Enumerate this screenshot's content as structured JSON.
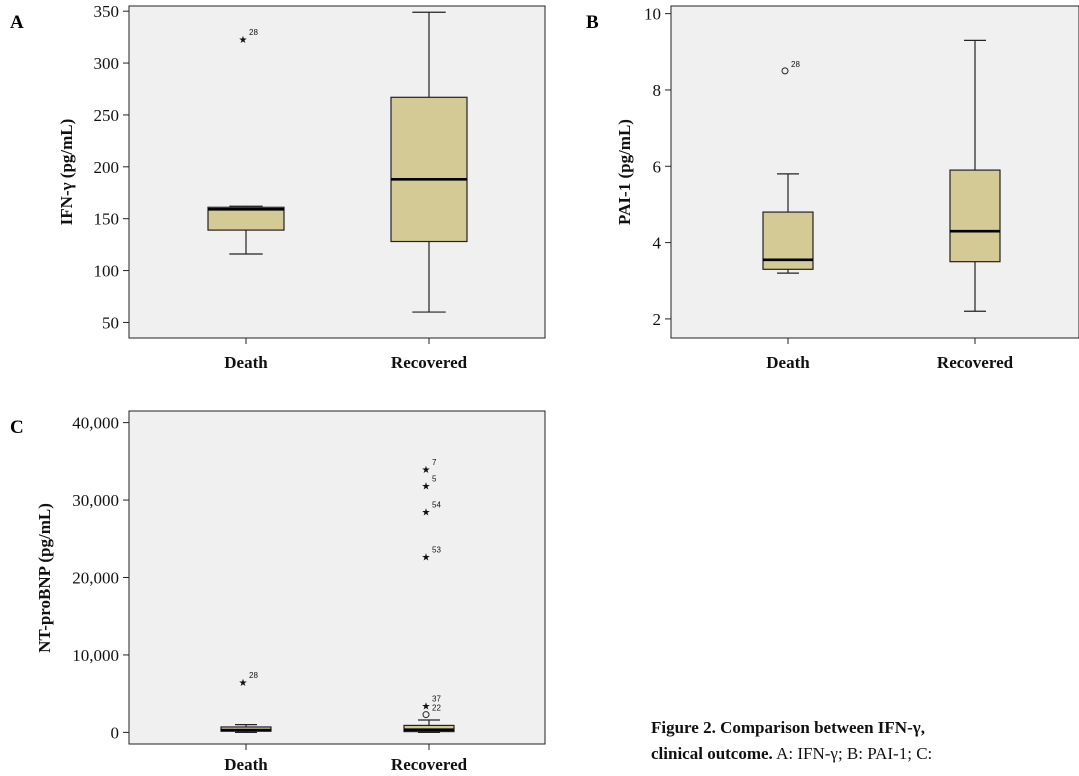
{
  "colors": {
    "plot_bg": "#f0f0f0",
    "box_fill": "#d3ca95",
    "stroke": "#222222"
  },
  "caption": {
    "title_line1": "Figure 2. Comparison between IFN-γ,",
    "title_line2": "clinical outcome.",
    "rest": " A: IFN-γ; B: PAI-1; C:"
  },
  "chart_data": [
    {
      "panel": "A",
      "type": "box",
      "ylabel": "IFN-γ (pg/mL)",
      "ylim": [
        35,
        355
      ],
      "yticks": [
        50,
        100,
        150,
        200,
        250,
        300,
        350
      ],
      "ytick_labels": [
        "50",
        "100",
        "150",
        "200",
        "250",
        "300",
        "350"
      ],
      "categories": [
        "Death",
        "Recovered"
      ],
      "boxes": [
        {
          "min": 116,
          "q1": 139,
          "median": 159,
          "q3": 161,
          "max": 162
        },
        {
          "min": 60,
          "q1": 128,
          "median": 188,
          "q3": 267,
          "max": 349
        }
      ],
      "outliers": [
        {
          "category": 0,
          "value": 323,
          "label": "28",
          "marker": "star"
        }
      ]
    },
    {
      "panel": "B",
      "type": "box",
      "ylabel": "PAI-1 (pg/mL)",
      "ylim": [
        1.5,
        10.2
      ],
      "yticks": [
        2,
        4,
        6,
        8,
        10
      ],
      "ytick_labels": [
        "2",
        "4",
        "6",
        "8",
        "10"
      ],
      "categories": [
        "Death",
        "Recovered"
      ],
      "boxes": [
        {
          "min": 3.2,
          "q1": 3.3,
          "median": 3.55,
          "q3": 4.8,
          "max": 5.8
        },
        {
          "min": 2.2,
          "q1": 3.5,
          "median": 4.3,
          "q3": 5.9,
          "max": 9.3
        }
      ],
      "outliers": [
        {
          "category": 0,
          "value": 8.5,
          "label": "28",
          "marker": "circle"
        }
      ]
    },
    {
      "panel": "C",
      "type": "box",
      "ylabel": "NT-proBNP (pg/mL)",
      "ylim": [
        -1500,
        41500
      ],
      "yticks": [
        0,
        10000,
        20000,
        30000,
        40000
      ],
      "ytick_labels": [
        "0",
        "10,000",
        "20,000",
        "30,000",
        "40,000"
      ],
      "categories": [
        "Death",
        "Recovered"
      ],
      "boxes": [
        {
          "min": 0,
          "q1": 150,
          "median": 300,
          "q3": 700,
          "max": 1000
        },
        {
          "min": 0,
          "q1": 100,
          "median": 350,
          "q3": 900,
          "max": 1600
        }
      ],
      "outliers": [
        {
          "category": 0,
          "value": 6500,
          "label": "28",
          "marker": "star"
        },
        {
          "category": 1,
          "value": 34000,
          "label": "7",
          "marker": "star"
        },
        {
          "category": 1,
          "value": 31900,
          "label": "5",
          "marker": "star"
        },
        {
          "category": 1,
          "value": 28500,
          "label": "54",
          "marker": "star"
        },
        {
          "category": 1,
          "value": 22700,
          "label": "53",
          "marker": "star"
        },
        {
          "category": 1,
          "value": 3500,
          "label": "37",
          "marker": "star"
        },
        {
          "category": 1,
          "value": 2300,
          "label": "22",
          "marker": "circle"
        }
      ]
    }
  ]
}
